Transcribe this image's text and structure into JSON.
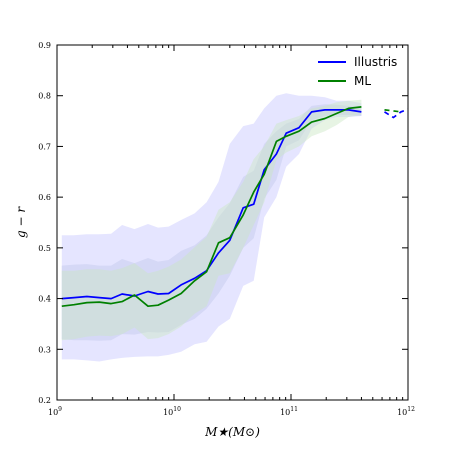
{
  "chart_data": {
    "type": "line",
    "xscale": "log",
    "xlim": [
      1000000000.0,
      1000000000000.0
    ],
    "ylim": [
      0.2,
      0.9
    ],
    "xlabel": "M★(M⊙)",
    "ylabel": "g − r",
    "x_ticks": [
      {
        "value": 1000000000.0,
        "base": "10",
        "exp": "9"
      },
      {
        "value": 10000000000.0,
        "base": "10",
        "exp": "10"
      },
      {
        "value": 100000000000.0,
        "base": "10",
        "exp": "11"
      },
      {
        "value": 1000000000000.0,
        "base": "10",
        "exp": "12"
      }
    ],
    "y_ticks": [
      "0.2",
      "0.3",
      "0.4",
      "0.5",
      "0.6",
      "0.7",
      "0.8",
      "0.9"
    ],
    "legend_position": "top-right",
    "series": [
      {
        "name": "Illustris",
        "color": "#0000ff",
        "x": [
          1100000000.0,
          1400000000.0,
          1800000000.0,
          2300000000.0,
          2900000000.0,
          3600000000.0,
          4600000000.0,
          6000000000.0,
          7300000000.0,
          9000000000.0,
          11500000000.0,
          15000000000.0,
          19000000000.0,
          24000000000.0,
          30000000000.0,
          39000000000.0,
          48000000000.0,
          59000000000.0,
          75000000000.0,
          91000000000.0,
          117000000000.0,
          150000000000.0,
          195000000000.0,
          245000000000.0,
          310000000000.0,
          400000000000.0
        ],
        "y": [
          0.4,
          0.402,
          0.404,
          0.402,
          0.4,
          0.409,
          0.405,
          0.414,
          0.409,
          0.41,
          0.427,
          0.44,
          0.455,
          0.49,
          0.515,
          0.579,
          0.586,
          0.654,
          0.685,
          0.726,
          0.737,
          0.768,
          0.772,
          0.772,
          0.772,
          0.768
        ],
        "dashed_x": [
          630000000000.0,
          750000000000.0,
          870000000000.0,
          1000000000000.0
        ],
        "dashed_y": [
          0.768,
          0.757,
          0.768,
          0.773
        ],
        "band_outer_upper": [
          0.525,
          0.525,
          0.527,
          0.527,
          0.528,
          0.545,
          0.537,
          0.547,
          0.54,
          0.542,
          0.555,
          0.568,
          0.59,
          0.63,
          0.705,
          0.74,
          0.745,
          0.775,
          0.8,
          0.805,
          0.8,
          0.8,
          0.797,
          0.79,
          0.79,
          0.785
        ],
        "band_outer_lower": [
          0.28,
          0.28,
          0.278,
          0.276,
          0.28,
          0.283,
          0.285,
          0.286,
          0.286,
          0.289,
          0.295,
          0.31,
          0.315,
          0.345,
          0.36,
          0.425,
          0.435,
          0.56,
          0.6,
          0.66,
          0.685,
          0.735,
          0.752,
          0.758,
          0.758,
          0.76
        ],
        "band_inner_upper": [
          0.465,
          0.467,
          0.468,
          0.465,
          0.465,
          0.478,
          0.47,
          0.48,
          0.473,
          0.476,
          0.494,
          0.505,
          0.525,
          0.56,
          0.588,
          0.64,
          0.652,
          0.705,
          0.73,
          0.745,
          0.754,
          0.78,
          0.783,
          0.782,
          0.78,
          0.777
        ],
        "band_inner_lower": [
          0.32,
          0.318,
          0.318,
          0.317,
          0.318,
          0.33,
          0.329,
          0.334,
          0.333,
          0.334,
          0.348,
          0.36,
          0.38,
          0.41,
          0.445,
          0.5,
          0.519,
          0.597,
          0.634,
          0.7,
          0.712,
          0.752,
          0.76,
          0.762,
          0.762,
          0.76
        ]
      },
      {
        "name": "ML",
        "color": "#008000",
        "x": [
          1100000000.0,
          1400000000.0,
          1800000000.0,
          2300000000.0,
          2900000000.0,
          3600000000.0,
          4600000000.0,
          6000000000.0,
          7300000000.0,
          9000000000.0,
          11500000000.0,
          15000000000.0,
          19000000000.0,
          24000000000.0,
          30000000000.0,
          39000000000.0,
          48000000000.0,
          59000000000.0,
          75000000000.0,
          91000000000.0,
          117000000000.0,
          150000000000.0,
          195000000000.0,
          245000000000.0,
          310000000000.0,
          400000000000.0
        ],
        "y": [
          0.385,
          0.388,
          0.392,
          0.393,
          0.39,
          0.394,
          0.407,
          0.385,
          0.387,
          0.397,
          0.41,
          0.435,
          0.453,
          0.51,
          0.52,
          0.565,
          0.61,
          0.645,
          0.71,
          0.72,
          0.73,
          0.748,
          0.755,
          0.765,
          0.775,
          0.778
        ],
        "dashed_x": [
          630000000000.0,
          750000000000.0,
          870000000000.0
        ],
        "dashed_y": [
          0.772,
          0.77,
          0.768
        ],
        "band_upper": [
          0.455,
          0.455,
          0.458,
          0.458,
          0.455,
          0.46,
          0.47,
          0.45,
          0.455,
          0.463,
          0.477,
          0.501,
          0.522,
          0.575,
          0.59,
          0.63,
          0.675,
          0.7,
          0.745,
          0.752,
          0.76,
          0.775,
          0.78,
          0.787,
          0.79,
          0.792
        ],
        "band_lower": [
          0.318,
          0.32,
          0.325,
          0.327,
          0.326,
          0.33,
          0.343,
          0.32,
          0.322,
          0.33,
          0.345,
          0.37,
          0.385,
          0.445,
          0.45,
          0.5,
          0.545,
          0.59,
          0.673,
          0.688,
          0.7,
          0.72,
          0.73,
          0.742,
          0.758,
          0.762
        ]
      }
    ]
  }
}
